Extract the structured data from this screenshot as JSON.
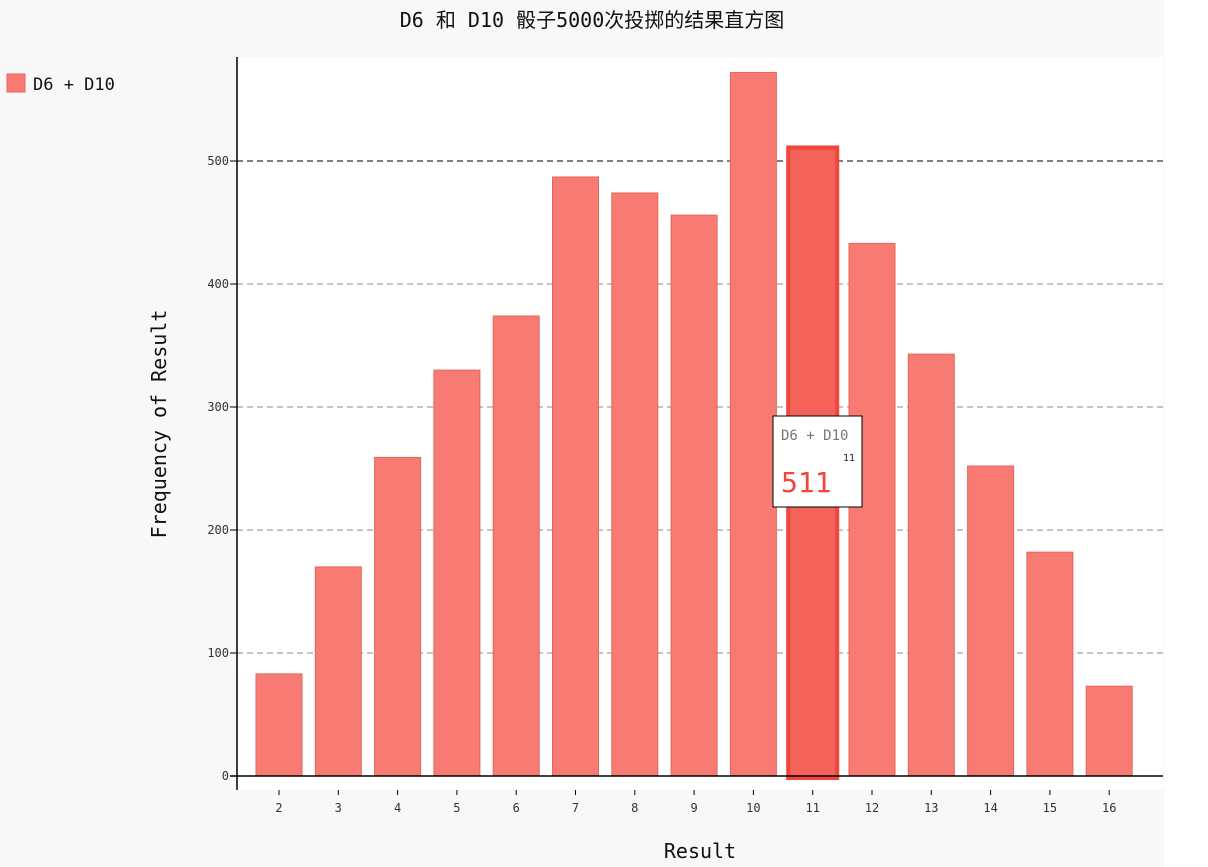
{
  "chart_data": {
    "type": "bar",
    "title": "D6 和 D10 骰子5000次投掷的结果直方图",
    "xlabel": "Result",
    "ylabel": "Frequency of Result",
    "categories": [
      "2",
      "3",
      "4",
      "5",
      "6",
      "7",
      "8",
      "9",
      "10",
      "11",
      "12",
      "13",
      "14",
      "15",
      "16"
    ],
    "series": [
      {
        "name": "D6 + D10",
        "values": [
          83,
          170,
          259,
          330,
          374,
          487,
          474,
          456,
          572,
          511,
          433,
          343,
          252,
          182,
          73
        ],
        "color": "#F77B72"
      }
    ],
    "ylim": [
      0,
      580
    ],
    "yticks": [
      "0",
      "100",
      "200",
      "300",
      "400",
      "500"
    ],
    "grid": "horizontal dashed",
    "legend": "top-left",
    "tooltip": {
      "series": "D6 + D10",
      "x": "11",
      "value": "511",
      "value_color": "#F0463C"
    }
  }
}
